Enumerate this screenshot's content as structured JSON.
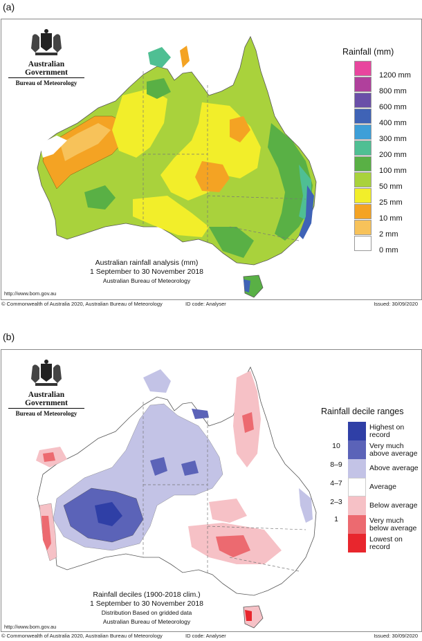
{
  "panel_a": {
    "label": "(a)",
    "logo": {
      "gov": "Australian Government",
      "bom": "Bureau of Meteorology"
    },
    "legend_title": "Rainfall (mm)",
    "legend": [
      {
        "label": "1200 mm",
        "color": "#e8469e"
      },
      {
        "label": "800 mm",
        "color": "#b0409c"
      },
      {
        "label": "600 mm",
        "color": "#6a4fa8"
      },
      {
        "label": "400 mm",
        "color": "#3f63b6"
      },
      {
        "label": "300 mm",
        "color": "#3d9fd8"
      },
      {
        "label": "200 mm",
        "color": "#4fbf93"
      },
      {
        "label": "100 mm",
        "color": "#59b045"
      },
      {
        "label": "50 mm",
        "color": "#a9d23c"
      },
      {
        "label": "25 mm",
        "color": "#f2ee2a"
      },
      {
        "label": "10 mm",
        "color": "#f4a323"
      },
      {
        "label": "2 mm",
        "color": "#f7c25a"
      },
      {
        "label": "0 mm",
        "color": "#ffffff"
      }
    ],
    "caption": {
      "line1": "Australian rainfall analysis (mm)",
      "line2": "1 September to 30 November 2018",
      "line3": "Australian Bureau of Meteorology"
    },
    "url": "http://www.bom.gov.au",
    "footer": {
      "copyright": "© Commonwealth of Australia 2020, Australian Bureau of Meteorology",
      "id_code": "ID code: Analyser",
      "issued": "Issued: 30/09/2020"
    }
  },
  "panel_b": {
    "label": "(b)",
    "logo": {
      "gov": "Australian Government",
      "bom": "Bureau of Meteorology"
    },
    "legend_title": "Rainfall decile ranges",
    "legend": [
      {
        "label": "Highest on record",
        "decile": "",
        "color": "#2f3fa6"
      },
      {
        "label": "Very much above average",
        "decile": "10",
        "color": "#5b63b8"
      },
      {
        "label": "Above average",
        "decile": "8–9",
        "color": "#c3c3e6"
      },
      {
        "label": "Average",
        "decile": "4–7",
        "color": "#ffffff"
      },
      {
        "label": "Below average",
        "decile": "2–3",
        "color": "#f6c1c6"
      },
      {
        "label": "Very much below average",
        "decile": "1",
        "color": "#ec6a70"
      },
      {
        "label": "Lowest on record",
        "decile": "",
        "color": "#e8262d"
      }
    ],
    "caption": {
      "line1": "Rainfall deciles (1900-2018 clim.)",
      "line2": "1 September to 30 November 2018",
      "line3": "Distribution Based on gridded data",
      "line4": "Australian Bureau of Meteorology"
    },
    "url": "http://www.bom.gov.au",
    "footer": {
      "copyright": "© Commonwealth of Australia 2020, Australian Bureau of Meteorology",
      "id_code": "ID code: Analyser",
      "issued": "Issued: 30/09/2020"
    }
  }
}
